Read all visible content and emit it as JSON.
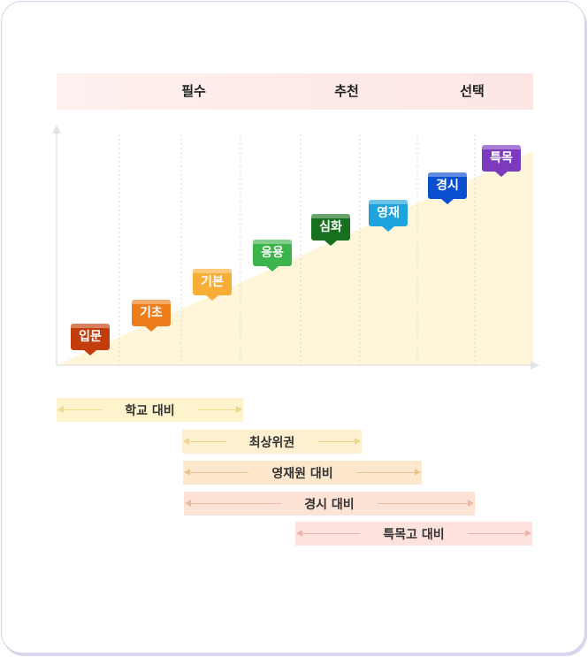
{
  "header": {
    "labels": [
      "필수",
      "추천",
      "선택"
    ]
  },
  "levels": [
    {
      "label": "입문",
      "color": "#c33d0c"
    },
    {
      "label": "기초",
      "color": "#ed7d1a"
    },
    {
      "label": "기본",
      "color": "#f7ad36"
    },
    {
      "label": "응용",
      "color": "#3cb44b"
    },
    {
      "label": "심화",
      "color": "#17701e"
    },
    {
      "label": "영재",
      "color": "#1ea3dd"
    },
    {
      "label": "경시",
      "color": "#0a4fcf"
    },
    {
      "label": "특목",
      "color": "#7c3bbf"
    }
  ],
  "ranges": [
    {
      "label": "학교 대비",
      "bg": "#fdf3cc",
      "arrow": "#eadb8c"
    },
    {
      "label": "최상위권",
      "bg": "#fdf0cf",
      "arrow": "#ecd48f"
    },
    {
      "label": "영재원 대비",
      "bg": "#fde8cd",
      "arrow": "#eac592"
    },
    {
      "label": "경시 대비",
      "bg": "#fde3d5",
      "arrow": "#ecb9a3"
    },
    {
      "label": "특목고 대비",
      "bg": "#fde2dd",
      "arrow": "#ebb5ad"
    }
  ]
}
